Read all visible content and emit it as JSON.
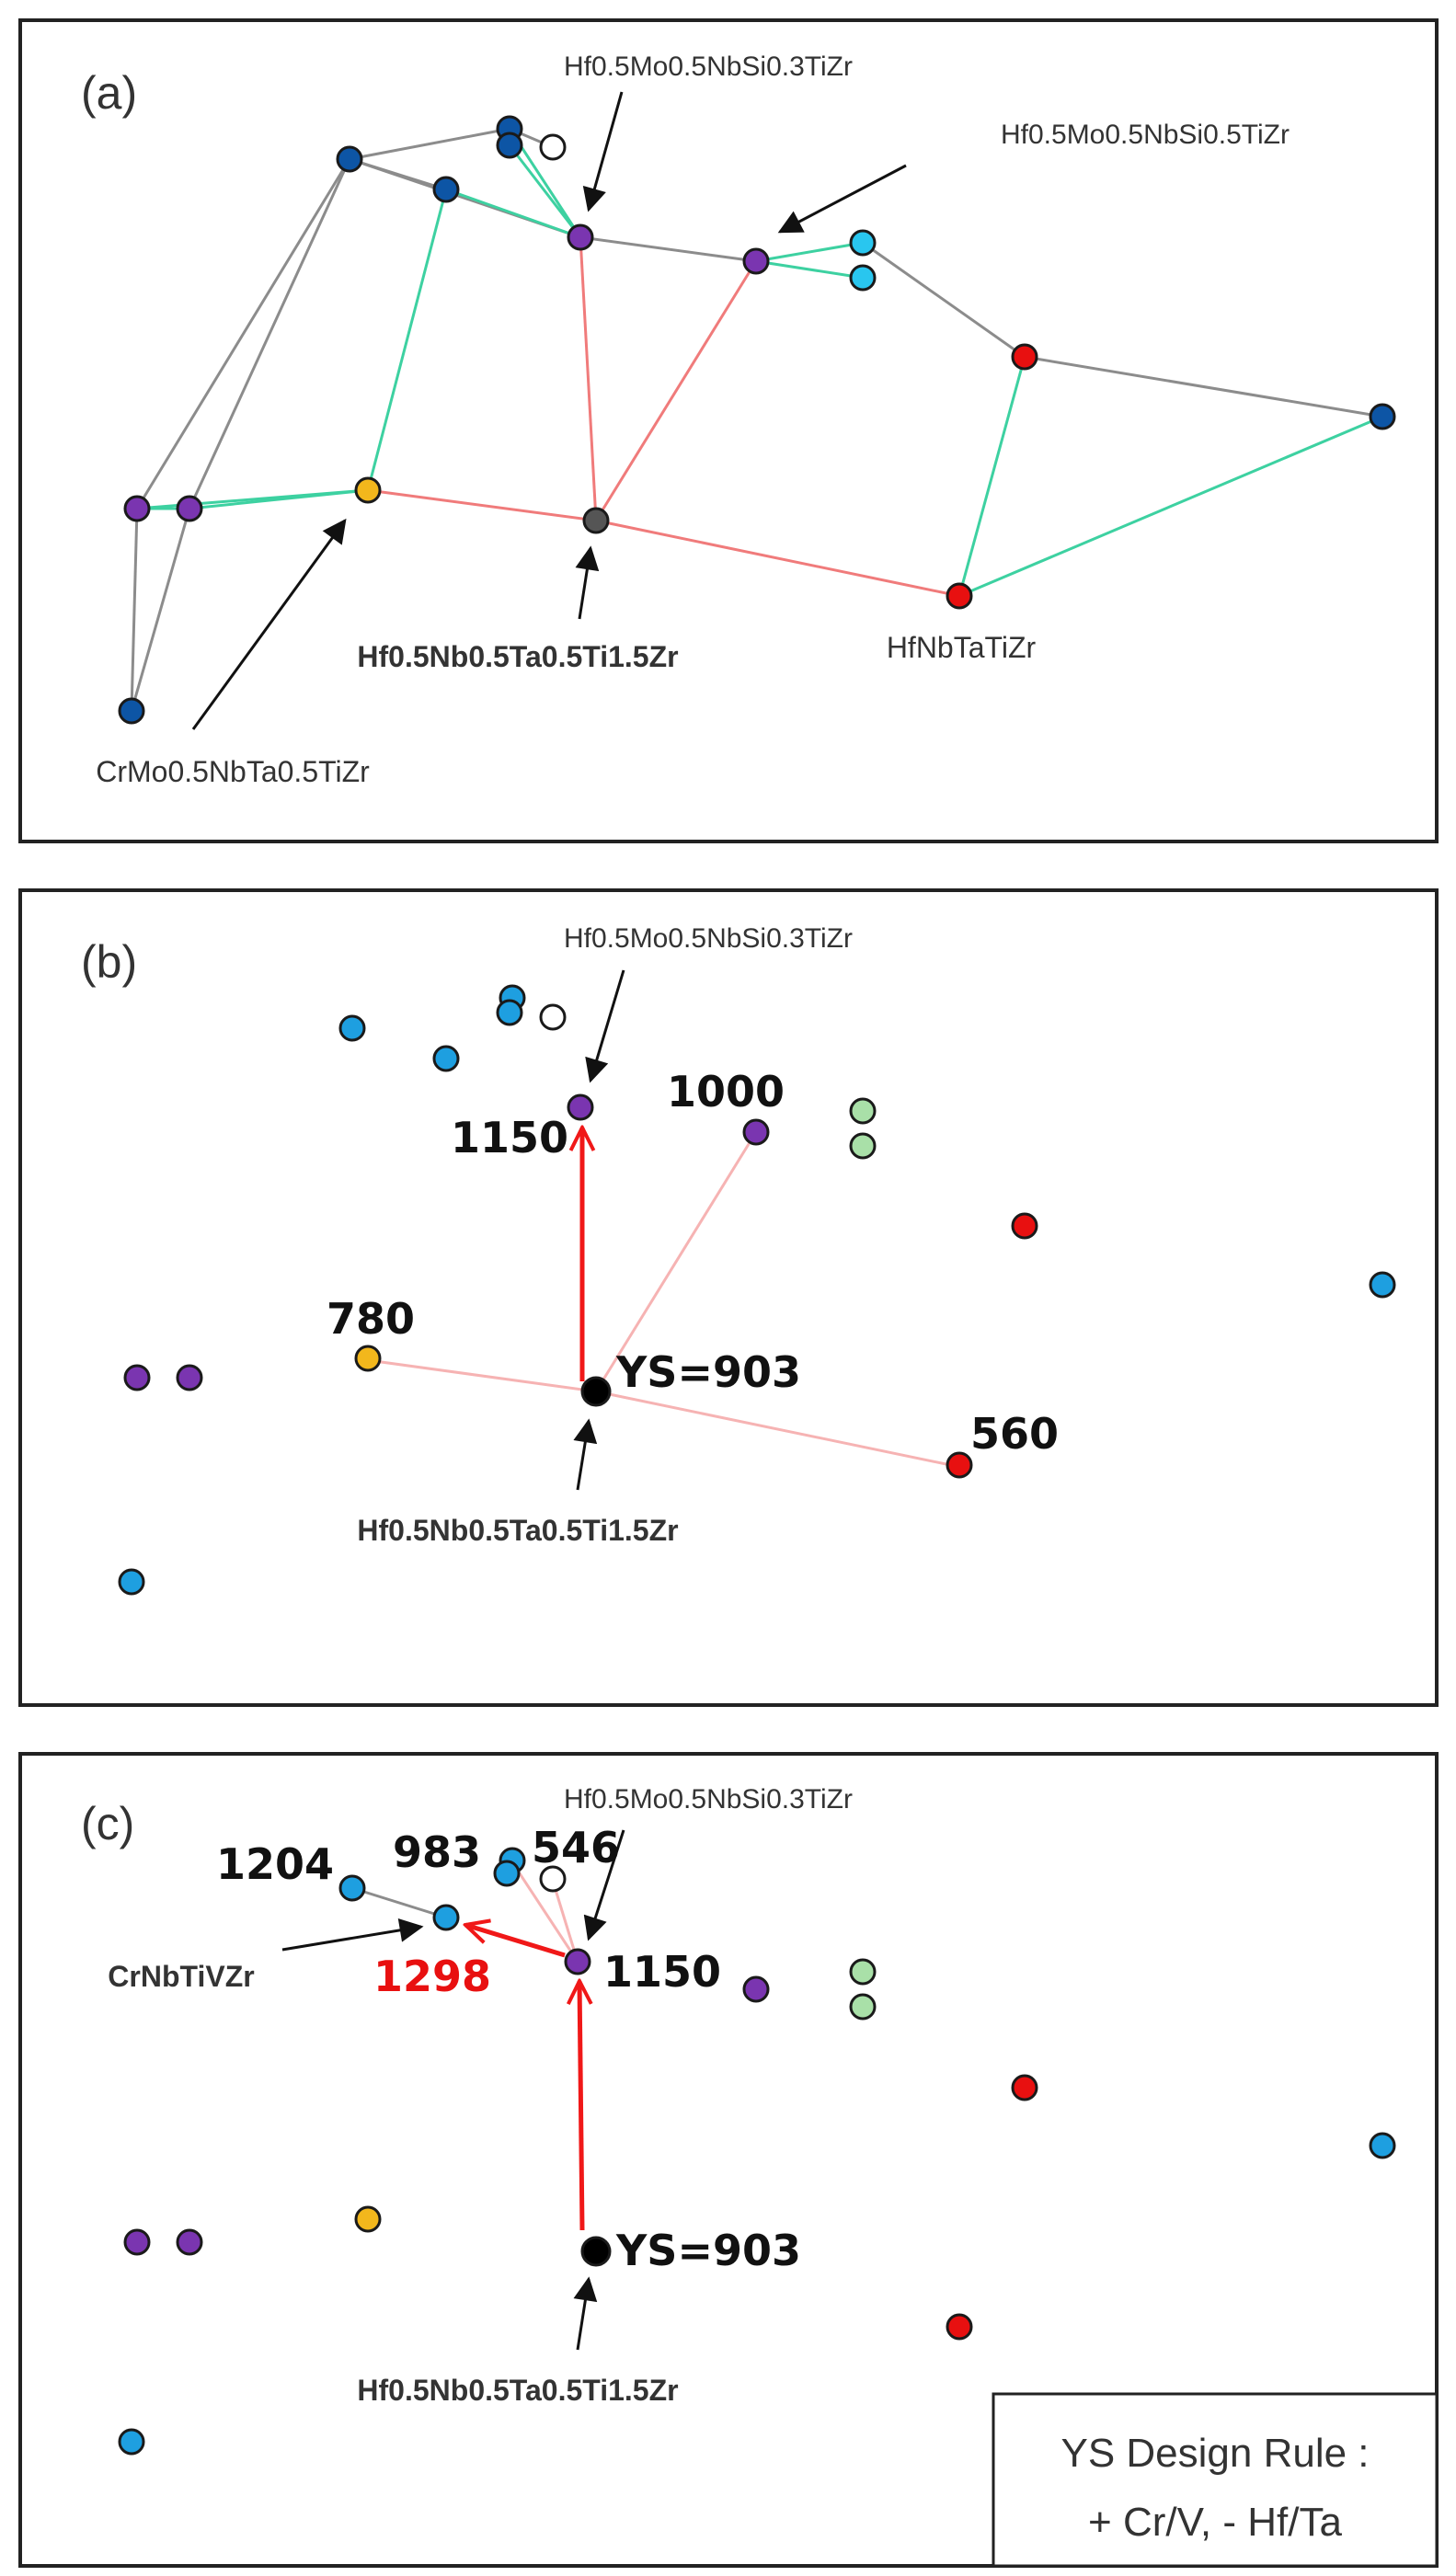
{
  "colors": {
    "purple": "#7a35b0",
    "navy": "#0d55a5",
    "sky": "#1e9fe0",
    "cyan": "#29c6ef",
    "gold": "#f2b71c",
    "red": "#e81010",
    "grey": "#555555",
    "black": "#000000",
    "white": "#ffffff",
    "mint": "#a9e0a8",
    "edge_grey": "#8c8c8c",
    "edge_teal": "#3dd1a1",
    "edge_red": "#f07b7b",
    "arrow_red": "#f01818",
    "arrow_pale": "#f6b3b3"
  },
  "panel_a": {
    "tag": "(a)",
    "labels": {
      "si03": "Hf0.5Mo0.5NbSi0.3TiZr",
      "si05": "Hf0.5Mo0.5NbSi0.5TiZr",
      "base": "Hf0.5Nb0.5Ta0.5Ti1.5Zr",
      "hfnb": "HfNbTaTiZr",
      "crmo": "CrMo0.5NbTa0.5TiZr"
    }
  },
  "panel_b": {
    "tag": "(b)",
    "labels": {
      "si03": "Hf0.5Mo0.5NbSi0.3TiZr",
      "base": "Hf0.5Nb0.5Ta0.5Ti1.5Zr"
    },
    "values": {
      "v1150": "1150",
      "v1000": "1000",
      "v780": "780",
      "ys": "YS=903",
      "v560": "560"
    }
  },
  "panel_c": {
    "tag": "(c)",
    "labels": {
      "si03": "Hf0.5Mo0.5NbSi0.3TiZr",
      "crnb": "CrNbTiVZr",
      "base": "Hf0.5Nb0.5Ta0.5Ti1.5Zr"
    },
    "values": {
      "v1204": "1204",
      "v983": "983",
      "v546": "546",
      "v1298": "1298",
      "v1150": "1150",
      "ys": "YS=903"
    },
    "rule_line1": "YS Design Rule :",
    "rule_line2": "+ Cr/V, - Hf/Ta"
  }
}
